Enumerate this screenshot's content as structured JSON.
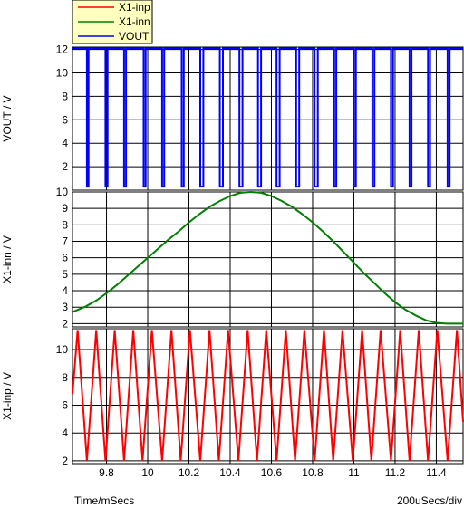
{
  "colors": {
    "x1_inp": "#ff0000",
    "x1_inn": "#008000",
    "vout": "#0000ff",
    "legend_bg": "#ffffc0"
  },
  "footer": {
    "xaxis_label": "Time/mSecs",
    "scale_label": "200uSecs/div"
  },
  "chart_data": {
    "type": "line",
    "grid": true,
    "legend": [
      "X1-inp",
      "X1-inn",
      "VOUT"
    ],
    "legend_position": "top-left",
    "xlim": [
      9.635,
      11.53
    ],
    "x_ticks": [
      "9.8",
      "10",
      "10.2",
      "10.4",
      "10.6",
      "10.8",
      "11",
      "11.2",
      "11.4"
    ],
    "x_tick_values": [
      9.8,
      10,
      10.2,
      10.4,
      10.6,
      10.8,
      11,
      11.2,
      11.4
    ],
    "panels": [
      {
        "name": "vout",
        "ylabel": "VOUT / V",
        "ylim": [
          0,
          12.2
        ],
        "y_ticks": [
          "2",
          "4",
          "6",
          "8",
          "10",
          "12"
        ],
        "y_tick_values": [
          2,
          4,
          6,
          8,
          10,
          12
        ],
        "series": [
          {
            "name": "VOUT",
            "x": [
              9.635,
              9.705,
              9.705,
              9.713,
              9.713,
              9.795,
              9.795,
              9.805,
              9.805,
              9.885,
              9.885,
              9.895,
              9.895,
              9.98,
              9.98,
              9.99,
              9.99,
              10.07,
              10.07,
              10.08,
              10.08,
              10.165,
              10.165,
              10.175,
              10.175,
              10.255,
              10.255,
              10.27,
              10.27,
              10.35,
              10.35,
              10.365,
              10.365,
              10.445,
              10.445,
              10.46,
              10.46,
              10.535,
              10.535,
              10.55,
              10.55,
              10.625,
              10.625,
              10.64,
              10.64,
              10.72,
              10.72,
              10.735,
              10.735,
              10.81,
              10.81,
              10.825,
              10.825,
              10.905,
              10.905,
              10.915,
              10.915,
              11.0,
              11.0,
              11.01,
              11.01,
              11.09,
              11.09,
              11.1,
              11.1,
              11.18,
              11.18,
              11.19,
              11.19,
              11.27,
              11.27,
              11.28,
              11.28,
              11.36,
              11.36,
              11.37,
              11.37,
              11.455,
              11.455,
              11.465,
              11.465,
              11.53
            ],
            "y": [
              12.1,
              12.1,
              0.3,
              0.3,
              12.1,
              12.1,
              0.3,
              0.3,
              12.1,
              12.1,
              0.3,
              0.3,
              12.1,
              12.1,
              0.3,
              0.3,
              12.1,
              12.1,
              0.3,
              0.3,
              12.1,
              12.1,
              0.3,
              0.3,
              12.1,
              12.1,
              0.3,
              0.3,
              12.1,
              12.1,
              0.3,
              0.3,
              12.1,
              12.1,
              0.3,
              0.3,
              12.1,
              12.1,
              0.3,
              0.3,
              12.1,
              12.1,
              0.3,
              0.3,
              12.1,
              12.1,
              0.3,
              0.3,
              12.1,
              12.1,
              0.3,
              0.3,
              12.1,
              12.1,
              0.3,
              0.3,
              12.1,
              12.1,
              0.3,
              0.3,
              12.1,
              12.1,
              0.3,
              0.3,
              12.1,
              12.1,
              0.3,
              0.3,
              12.1,
              12.1,
              0.3,
              0.3,
              12.1,
              12.1,
              0.3,
              0.3,
              12.1,
              12.1,
              0.3,
              0.3,
              12.1,
              12.1
            ]
          }
        ]
      },
      {
        "name": "inn",
        "ylabel": "X1-inn / V",
        "ylim": [
          1.8,
          10.0
        ],
        "y_ticks": [
          "2",
          "3",
          "4",
          "5",
          "6",
          "7",
          "8",
          "9",
          "10"
        ],
        "y_tick_values": [
          2,
          3,
          4,
          5,
          6,
          7,
          8,
          9,
          10
        ],
        "series": [
          {
            "name": "X1-inn",
            "x": [
              9.635,
              9.7,
              9.75,
              9.8,
              9.85,
              9.9,
              9.95,
              10.0,
              10.05,
              10.1,
              10.15,
              10.2,
              10.25,
              10.3,
              10.35,
              10.4,
              10.45,
              10.5,
              10.55,
              10.6,
              10.65,
              10.7,
              10.75,
              10.8,
              10.85,
              10.9,
              10.95,
              11.0,
              11.05,
              11.1,
              11.15,
              11.2,
              11.25,
              11.3,
              11.35,
              11.4,
              11.45,
              11.5,
              11.53
            ],
            "y": [
              2.7,
              3.05,
              3.4,
              3.85,
              4.35,
              4.9,
              5.45,
              6.0,
              6.55,
              7.1,
              7.6,
              8.15,
              8.65,
              9.1,
              9.45,
              9.75,
              9.95,
              10.0,
              9.95,
              9.75,
              9.45,
              9.1,
              8.65,
              8.15,
              7.6,
              7.0,
              6.35,
              5.7,
              5.05,
              4.45,
              3.85,
              3.3,
              2.85,
              2.5,
              2.2,
              2.05,
              2.0,
              2.0,
              2.0
            ]
          }
        ]
      },
      {
        "name": "inp",
        "ylabel": "X1-inp / V",
        "ylim": [
          1.8,
          11.5
        ],
        "y_ticks": [
          "2",
          "4",
          "6",
          "8",
          "10"
        ],
        "y_tick_values": [
          2,
          4,
          6,
          8,
          10
        ],
        "series": [
          {
            "name": "X1-inp",
            "x": [
              9.635,
              9.66,
              9.705,
              9.75,
              9.795,
              9.84,
              9.885,
              9.93,
              9.975,
              10.02,
              10.07,
              10.115,
              10.16,
              10.205,
              10.255,
              10.3,
              10.345,
              10.39,
              10.44,
              10.485,
              10.53,
              10.575,
              10.625,
              10.67,
              10.715,
              10.76,
              10.81,
              10.855,
              10.9,
              10.945,
              10.995,
              11.04,
              11.085,
              11.13,
              11.18,
              11.225,
              11.27,
              11.315,
              11.36,
              11.405,
              11.455,
              11.5,
              11.53
            ],
            "y": [
              6.8,
              11.4,
              2.0,
              11.4,
              2.0,
              11.4,
              2.0,
              11.4,
              2.0,
              11.4,
              2.0,
              11.4,
              2.0,
              11.4,
              2.0,
              11.4,
              2.0,
              11.4,
              2.0,
              11.4,
              2.0,
              11.4,
              2.0,
              11.4,
              2.0,
              11.4,
              2.0,
              11.4,
              2.0,
              11.4,
              2.0,
              11.4,
              2.0,
              11.4,
              2.0,
              11.4,
              2.0,
              11.4,
              2.0,
              11.4,
              2.0,
              11.4,
              4.8
            ]
          }
        ]
      }
    ]
  }
}
